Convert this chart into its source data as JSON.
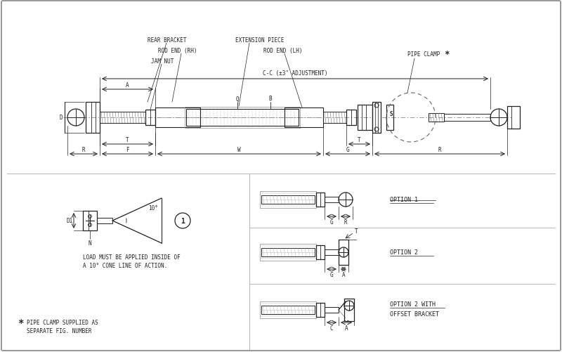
{
  "bg_color": "#ffffff",
  "border_color": "#aaaaaa",
  "line_color": "#222222",
  "dim_color": "#222222",
  "text_color": "#222222",
  "labels": {
    "cc_label": "C-C (±3\" ADJUSTMENT)",
    "a_label": "A",
    "rear_bracket": "REAR BRACKET",
    "rod_end_rh": "ROD END (RH)",
    "jam_nut": "JAM NUT",
    "extension_piece": "EXTENSION PIECE",
    "rod_end_lh": "ROD END (LH)",
    "pipe_clamp": "PIPE CLAMP",
    "star": "*",
    "q_label": "Q",
    "b_label": "B",
    "d_label": "D",
    "s_label": "S",
    "r_label": "R",
    "f_label": "F",
    "w_label": "W",
    "g_label": "G",
    "t_label": "T",
    "d1_label": "D1",
    "n_label": "N",
    "angle_label": "10°",
    "load_note1": "LOAD MUST BE APPLIED INSIDE OF",
    "load_note2": "A 10° CONE LINE OF ACTION.",
    "pipe_note1": "PIPE CLAMP SUPPLIED AS",
    "pipe_note2": "SEPARATE FIG. NUMBER",
    "option1": "OPTION 1",
    "option2": "OPTION 2",
    "option2w": "OPTION 2 WITH",
    "offset_bracket": "OFFSET BRACKET"
  }
}
